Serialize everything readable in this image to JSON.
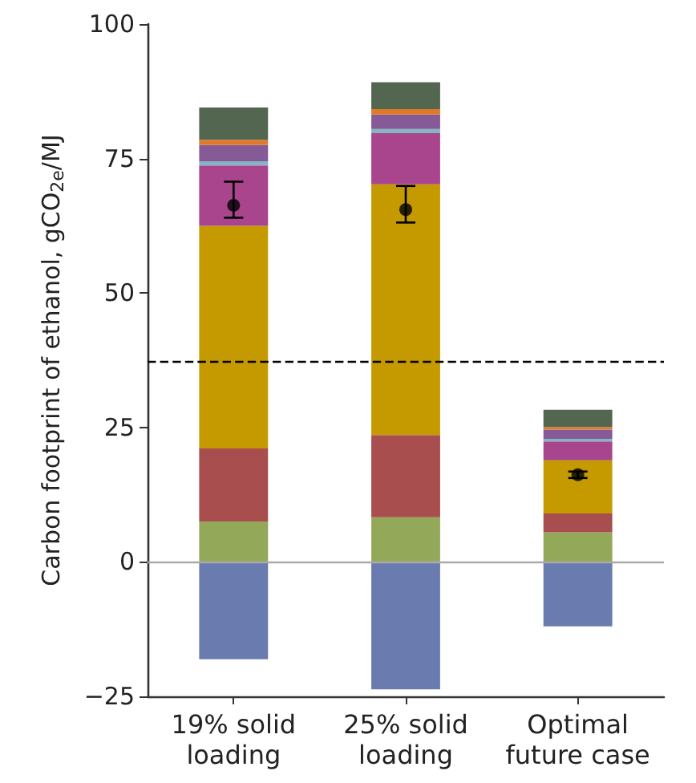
{
  "chart_data": {
    "type": "bar",
    "stacked": true,
    "ylabel": "Carbon footprint of ethanol, gCO$_{2e}$/MJ",
    "categories": [
      "19% solid\nloading",
      "25% solid\nloading",
      "Optimal\nfuture case"
    ],
    "series": [
      {
        "color": "#6a7bb0",
        "values": [
          -18.1,
          -23.7,
          -12.0
        ]
      },
      {
        "color": "#94a85a",
        "values": [
          7.5,
          8.3,
          5.5
        ]
      },
      {
        "color": "#a84e4e",
        "values": [
          13.6,
          15.3,
          3.5
        ]
      },
      {
        "color": "#c59a00",
        "values": [
          41.4,
          46.6,
          9.9
        ]
      },
      {
        "color": "#a8458c",
        "values": [
          11.2,
          9.5,
          3.5
        ]
      },
      {
        "color": "#86b4c4",
        "values": [
          0.8,
          0.8,
          0.5
        ]
      },
      {
        "color": "#855a96",
        "values": [
          3.0,
          2.7,
          1.7
        ]
      },
      {
        "color": "#e07a2a",
        "values": [
          1.0,
          1.0,
          0.5
        ]
      },
      {
        "color": "#536650",
        "values": [
          6.0,
          5.0,
          3.2
        ]
      },
      {
        "type": "scatter",
        "color": "#000000",
        "x": [
          "19% solid\nloading",
          "25% solid\nloading",
          "Optimal\nfuture case"
        ],
        "values": [
          66.3,
          65.5,
          16.2
        ],
        "errors": [
          [
            64.0,
            70.7
          ],
          [
            63.1,
            69.9
          ],
          [
            15.6,
            16.8
          ]
        ]
      }
    ],
    "ylim": [
      -25,
      100
    ],
    "yticks": [
      -25,
      0,
      25,
      50,
      75,
      100
    ],
    "ref_lines": [
      {
        "axis": "y",
        "value": 37.4,
        "color": "#000000",
        "line_style": "dashed"
      },
      {
        "axis": "y",
        "value": 0,
        "color": "#aaaaaa",
        "line_style": "solid"
      }
    ],
    "grid": false,
    "marker": "circle"
  }
}
